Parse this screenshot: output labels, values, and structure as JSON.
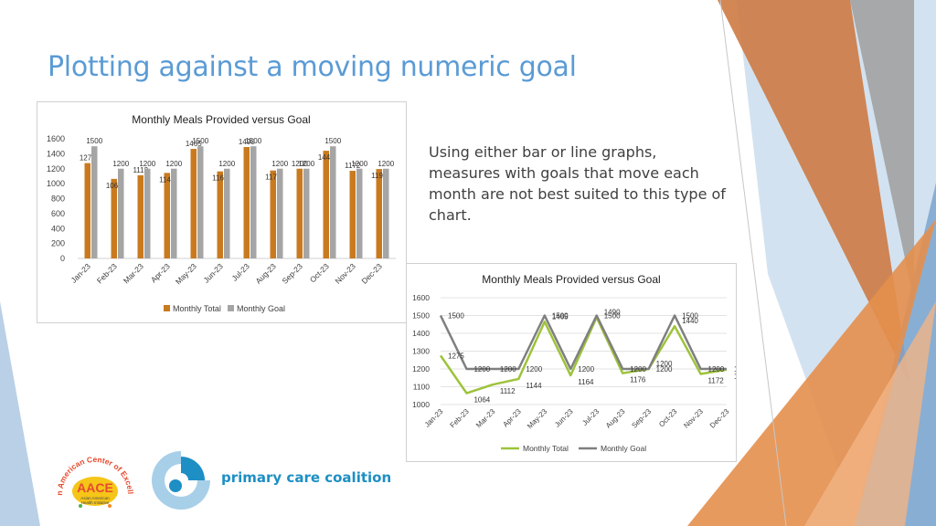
{
  "slide": {
    "title": "Plotting against a moving numeric goal",
    "body_text": "Using either bar or line graphs, measures with goals that move each month are not best suited to this type of chart."
  },
  "logos": {
    "aace": {
      "top_arc": "Asian American Center of Excellence",
      "main": "AACE",
      "line1": "Asian American",
      "line2": "Health Initiative",
      "colors": {
        "yellow": "#f5c518",
        "red": "#e64a2e",
        "green": "#4caf50",
        "orange": "#f28b21"
      }
    },
    "pcc": {
      "name": "primary care coalition",
      "colors": {
        "blue": "#1d8fc4",
        "light_blue": "#a8cfe8"
      }
    }
  },
  "colors": {
    "title_blue": "#5b9bd5",
    "bar_total": "#c97a1f",
    "bar_goal": "#a5a5a5",
    "line_total": "#9dc33b",
    "line_goal": "#7f7f7f",
    "deco_orange": "#e48f4c",
    "deco_blue": "#8fb3d6",
    "deco_gray": "#9e9e9e"
  },
  "chart_data": [
    {
      "type": "bar",
      "title": "Monthly Meals Provided versus Goal",
      "categories": [
        "Jan-23",
        "Feb-23",
        "Mar-23",
        "Apr-23",
        "May-23",
        "Jun-23",
        "Jul-23",
        "Aug-23",
        "Sep-23",
        "Oct-23",
        "Nov-23",
        "Dec-23"
      ],
      "series": [
        {
          "name": "Monthly Total",
          "values": [
            1275,
            1064,
            1112,
            1144,
            1465,
            1164,
            1490,
            1176,
            1200,
            1440,
            1172,
            1196
          ]
        },
        {
          "name": "Monthly Goal",
          "values": [
            1500,
            1200,
            1200,
            1200,
            1500,
            1200,
            1500,
            1200,
            1200,
            1500,
            1200,
            1200
          ]
        }
      ],
      "yticks": [
        "0",
        "200",
        "400",
        "600",
        "800",
        "1000",
        "1200",
        "1400",
        "1600"
      ],
      "ylim": [
        0,
        1600
      ],
      "grid": false,
      "data_labels": true,
      "legend": "bottom"
    },
    {
      "type": "line",
      "title": "Monthly Meals Provided versus Goal",
      "categories": [
        "Jan-23",
        "Feb-23",
        "Mar-23",
        "Apr-23",
        "May-23",
        "Jun-23",
        "Jul-23",
        "Aug-23",
        "Sep-23",
        "Oct-23",
        "Nov-23",
        "Dec-23"
      ],
      "series": [
        {
          "name": "Monthly Total",
          "values": [
            1275,
            1064,
            1112,
            1144,
            1465,
            1164,
            1490,
            1176,
            1200,
            1440,
            1172,
            1196
          ]
        },
        {
          "name": "Monthly Goal",
          "values": [
            1500,
            1200,
            1200,
            1200,
            1500,
            1200,
            1500,
            1200,
            1200,
            1500,
            1200,
            1200
          ]
        }
      ],
      "yticks": [
        "1000",
        "1100",
        "1200",
        "1300",
        "1400",
        "1500",
        "1600"
      ],
      "ylim": [
        1000,
        1600
      ],
      "grid": true,
      "data_labels": true,
      "legend": "bottom"
    }
  ]
}
